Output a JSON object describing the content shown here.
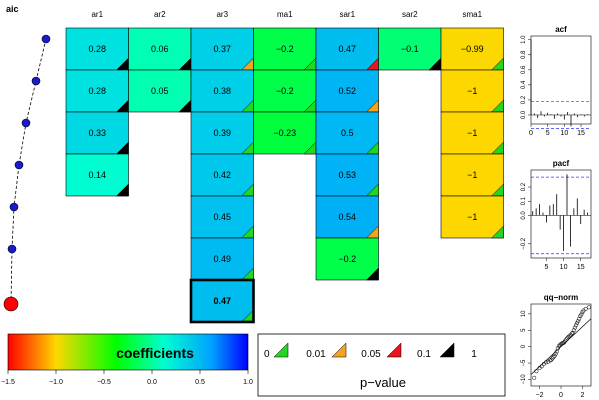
{
  "chart_data": {
    "type": "heatmap",
    "aic_label": "aic",
    "aic_points": 7,
    "aic_best_index": 6,
    "columns": [
      "ar1",
      "ar2",
      "ar3",
      "ma1",
      "sar1",
      "sar2",
      "sma1"
    ],
    "cells": [
      {
        "col": 0,
        "row": 0,
        "label": "0.28",
        "value": 0.28,
        "pvalue_band": "0.1-1"
      },
      {
        "col": 0,
        "row": 1,
        "label": "0.28",
        "value": 0.28,
        "pvalue_band": "0.1-1"
      },
      {
        "col": 0,
        "row": 2,
        "label": "0.33",
        "value": 0.33,
        "pvalue_band": "0.1-1"
      },
      {
        "col": 0,
        "row": 3,
        "label": "0.14",
        "value": 0.14,
        "pvalue_band": "0.1-1"
      },
      {
        "col": 1,
        "row": 0,
        "label": "0.06",
        "value": 0.06,
        "pvalue_band": "0.1-1"
      },
      {
        "col": 1,
        "row": 1,
        "label": "0.05",
        "value": 0.05,
        "pvalue_band": "0.1-1"
      },
      {
        "col": 2,
        "row": 0,
        "label": "0.37",
        "value": 0.37,
        "pvalue_band": "0.01-0.05"
      },
      {
        "col": 2,
        "row": 1,
        "label": "0.38",
        "value": 0.38,
        "pvalue_band": "0-0.01"
      },
      {
        "col": 2,
        "row": 2,
        "label": "0.39",
        "value": 0.39,
        "pvalue_band": "0-0.01"
      },
      {
        "col": 2,
        "row": 3,
        "label": "0.42",
        "value": 0.42,
        "pvalue_band": "0-0.01"
      },
      {
        "col": 2,
        "row": 4,
        "label": "0.45",
        "value": 0.45,
        "pvalue_band": "0-0.01"
      },
      {
        "col": 2,
        "row": 5,
        "label": "0.49",
        "value": 0.49,
        "pvalue_band": "0-0.01"
      },
      {
        "col": 2,
        "row": 6,
        "label": "0.47",
        "value": 0.47,
        "pvalue_band": "0-0.01",
        "selected": true
      },
      {
        "col": 3,
        "row": 0,
        "label": "−0.2",
        "value": -0.2,
        "pvalue_band": "0-0.01"
      },
      {
        "col": 3,
        "row": 1,
        "label": "−0.2",
        "value": -0.2,
        "pvalue_band": "0-0.01"
      },
      {
        "col": 3,
        "row": 2,
        "label": "−0.23",
        "value": -0.23,
        "pvalue_band": "0-0.01"
      },
      {
        "col": 4,
        "row": 0,
        "label": "0.47",
        "value": 0.47,
        "pvalue_band": "0.05-0.1"
      },
      {
        "col": 4,
        "row": 1,
        "label": "0.52",
        "value": 0.52,
        "pvalue_band": "0.01-0.05"
      },
      {
        "col": 4,
        "row": 2,
        "label": "0.5",
        "value": 0.5,
        "pvalue_band": "0-0.01"
      },
      {
        "col": 4,
        "row": 3,
        "label": "0.53",
        "value": 0.53,
        "pvalue_band": "0-0.01"
      },
      {
        "col": 4,
        "row": 4,
        "label": "0.54",
        "value": 0.54,
        "pvalue_band": "0.01-0.05"
      },
      {
        "col": 4,
        "row": 5,
        "label": "−0.2",
        "value": -0.2,
        "pvalue_band": "0.1-1"
      },
      {
        "col": 5,
        "row": 0,
        "label": "−0.1",
        "value": -0.1,
        "pvalue_band": "0.1-1"
      },
      {
        "col": 6,
        "row": 0,
        "label": "−0.99",
        "value": -0.99,
        "pvalue_band": "0-0.01"
      },
      {
        "col": 6,
        "row": 1,
        "label": "−1",
        "value": -1,
        "pvalue_band": "0-0.01"
      },
      {
        "col": 6,
        "row": 2,
        "label": "−1",
        "value": -1,
        "pvalue_band": "0-0.01"
      },
      {
        "col": 6,
        "row": 3,
        "label": "−1",
        "value": -1,
        "pvalue_band": "0-0.01"
      },
      {
        "col": 6,
        "row": 4,
        "label": "−1",
        "value": -1,
        "pvalue_band": "0-0.01"
      }
    ],
    "coef_legend": {
      "title": "coefficients",
      "range": [
        -1.5,
        1.0
      ],
      "ticks": [
        "−1.5",
        "−1.0",
        "−0.5",
        "0.0",
        "0.5",
        "1.0"
      ],
      "tick_values": [
        -1.5,
        -1.0,
        -0.5,
        0.0,
        0.5,
        1.0
      ]
    },
    "pvalue_legend": {
      "title": "p−value",
      "breaks": [
        "0",
        "0.01",
        "0.05",
        "0.1",
        "1"
      ],
      "colors": [
        "#22d622",
        "#f5a21e",
        "#e8141e",
        "#000000"
      ]
    },
    "acf": {
      "title": "acf",
      "yticks": [
        "0.0",
        "0.2",
        "0.4",
        "0.6",
        "0.8",
        "1.0"
      ],
      "ytick_values": [
        0.0,
        0.2,
        0.4,
        0.6,
        0.8,
        1.0
      ],
      "xticks": [
        "0",
        "5",
        "10",
        "15"
      ],
      "xtick_values": [
        0,
        5,
        10,
        15
      ],
      "ylim": [
        -0.12,
        1.05
      ],
      "xlim": [
        0,
        18
      ],
      "conf": 0.18,
      "lags": [
        1,
        2,
        3,
        4,
        5,
        6,
        7,
        8,
        9,
        10,
        11,
        12,
        13,
        14,
        15,
        16,
        17
      ],
      "values": [
        0.02,
        -0.04,
        0.05,
        -0.02,
        0.03,
        0.01,
        -0.05,
        0.02,
        -0.02,
        -0.06,
        0.04,
        -0.15,
        0.02,
        -0.03,
        0.01,
        -0.02,
        0.01
      ],
      "first": 1.0
    },
    "pacf": {
      "title": "pacf",
      "yticks": [
        "−0.2",
        "0.0",
        "0.1",
        "0.2"
      ],
      "ytick_values": [
        -0.2,
        0.0,
        0.1,
        0.2
      ],
      "xticks": [
        "5",
        "10",
        "15"
      ],
      "xtick_values": [
        5,
        10,
        15
      ],
      "ylim": [
        -0.3,
        0.32
      ],
      "xlim": [
        0.5,
        18
      ],
      "conf": 0.27,
      "lags": [
        1,
        2,
        3,
        4,
        5,
        6,
        7,
        8,
        9,
        10,
        11,
        12,
        13,
        14,
        15,
        16,
        17
      ],
      "values": [
        0.03,
        0.05,
        0.08,
        0.02,
        -0.05,
        0.07,
        0.08,
        0.15,
        -0.1,
        -0.25,
        0.29,
        -0.22,
        0.05,
        0.12,
        -0.06,
        0.04,
        0.02
      ]
    },
    "qq": {
      "title": "qq−norm",
      "yticks": [
        "−10",
        "−5",
        "0",
        "5",
        "10"
      ],
      "ytick_values": [
        -10,
        -5,
        0,
        5,
        10
      ],
      "xticks": [
        "−2",
        "0",
        "2"
      ],
      "xtick_values": [
        -2,
        0,
        2
      ],
      "xlim": [
        -2.8,
        2.8
      ],
      "ylim": [
        -12,
        13
      ],
      "line": [
        [
          -2.8,
          -8.5
        ],
        [
          2.8,
          8.5
        ]
      ],
      "points": [
        [
          -2.5,
          -9.5
        ],
        [
          -2.3,
          -7.5
        ],
        [
          -2.0,
          -6.5
        ],
        [
          -1.8,
          -6
        ],
        [
          -1.6,
          -5.3
        ],
        [
          -1.4,
          -4.8
        ],
        [
          -1.2,
          -4.6
        ],
        [
          -1.0,
          -4.2
        ],
        [
          -0.9,
          -4
        ],
        [
          -0.8,
          -3.6
        ],
        [
          -0.7,
          -3.2
        ],
        [
          -0.6,
          -2.8
        ],
        [
          -0.5,
          -2.2
        ],
        [
          -0.4,
          -1.5
        ],
        [
          -0.3,
          -0.5
        ],
        [
          -0.2,
          0.2
        ],
        [
          -0.1,
          0.5
        ],
        [
          0,
          0.8
        ],
        [
          0.1,
          1
        ],
        [
          0.2,
          1.1
        ],
        [
          0.3,
          1.3
        ],
        [
          0.4,
          1.8
        ],
        [
          0.5,
          2.2
        ],
        [
          0.6,
          2.6
        ],
        [
          0.7,
          3
        ],
        [
          0.8,
          3.2
        ],
        [
          0.9,
          3.5
        ],
        [
          1.0,
          4
        ],
        [
          1.1,
          4.2
        ],
        [
          1.2,
          5
        ],
        [
          1.3,
          5.8
        ],
        [
          1.4,
          6.5
        ],
        [
          1.5,
          7.2
        ],
        [
          1.6,
          7.8
        ],
        [
          1.7,
          8.5
        ],
        [
          1.8,
          9.3
        ],
        [
          1.9,
          9.8
        ],
        [
          2.0,
          10.5
        ],
        [
          2.1,
          11
        ],
        [
          2.3,
          11.5
        ],
        [
          2.6,
          12
        ]
      ]
    }
  }
}
